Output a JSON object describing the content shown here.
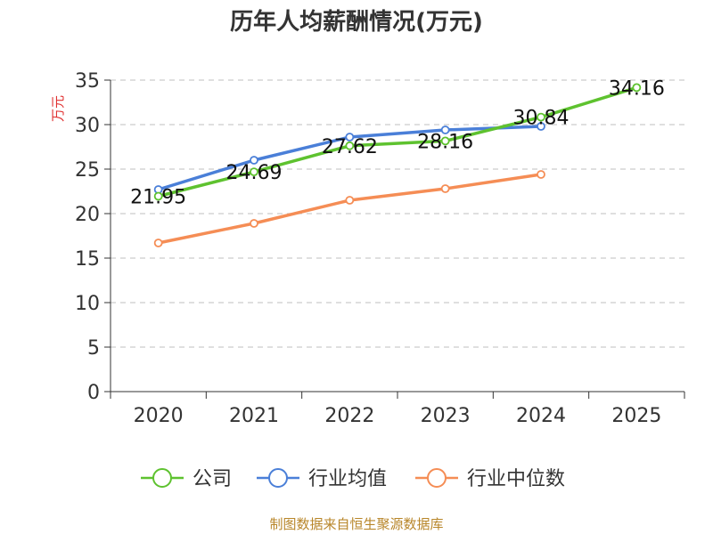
{
  "chart_data": {
    "type": "line",
    "title": "历年人均薪酬情况(万元)",
    "ylabel": "万元",
    "xlabel": "",
    "categories": [
      "2020",
      "2021",
      "2022",
      "2023",
      "2024",
      "2025"
    ],
    "ylim": [
      0,
      35
    ],
    "yticks": [
      0,
      5,
      10,
      15,
      20,
      25,
      30,
      35
    ],
    "grid": true,
    "legend_position": "bottom",
    "series": [
      {
        "name": "公司",
        "color": "#5ec22f",
        "values": [
          21.95,
          24.69,
          27.62,
          28.16,
          30.84,
          34.16
        ],
        "labels": [
          "21.95",
          "24.69",
          "27.62",
          "28.16",
          "30.84",
          "34.16"
        ]
      },
      {
        "name": "行业均值",
        "color": "#4a7fd8",
        "values": [
          22.7,
          26.0,
          28.6,
          29.4,
          29.8,
          null
        ]
      },
      {
        "name": "行业中位数",
        "color": "#f58d55",
        "values": [
          16.7,
          18.9,
          21.5,
          22.8,
          24.4,
          null
        ]
      }
    ]
  },
  "source": "制图数据来自恒生聚源数据库"
}
